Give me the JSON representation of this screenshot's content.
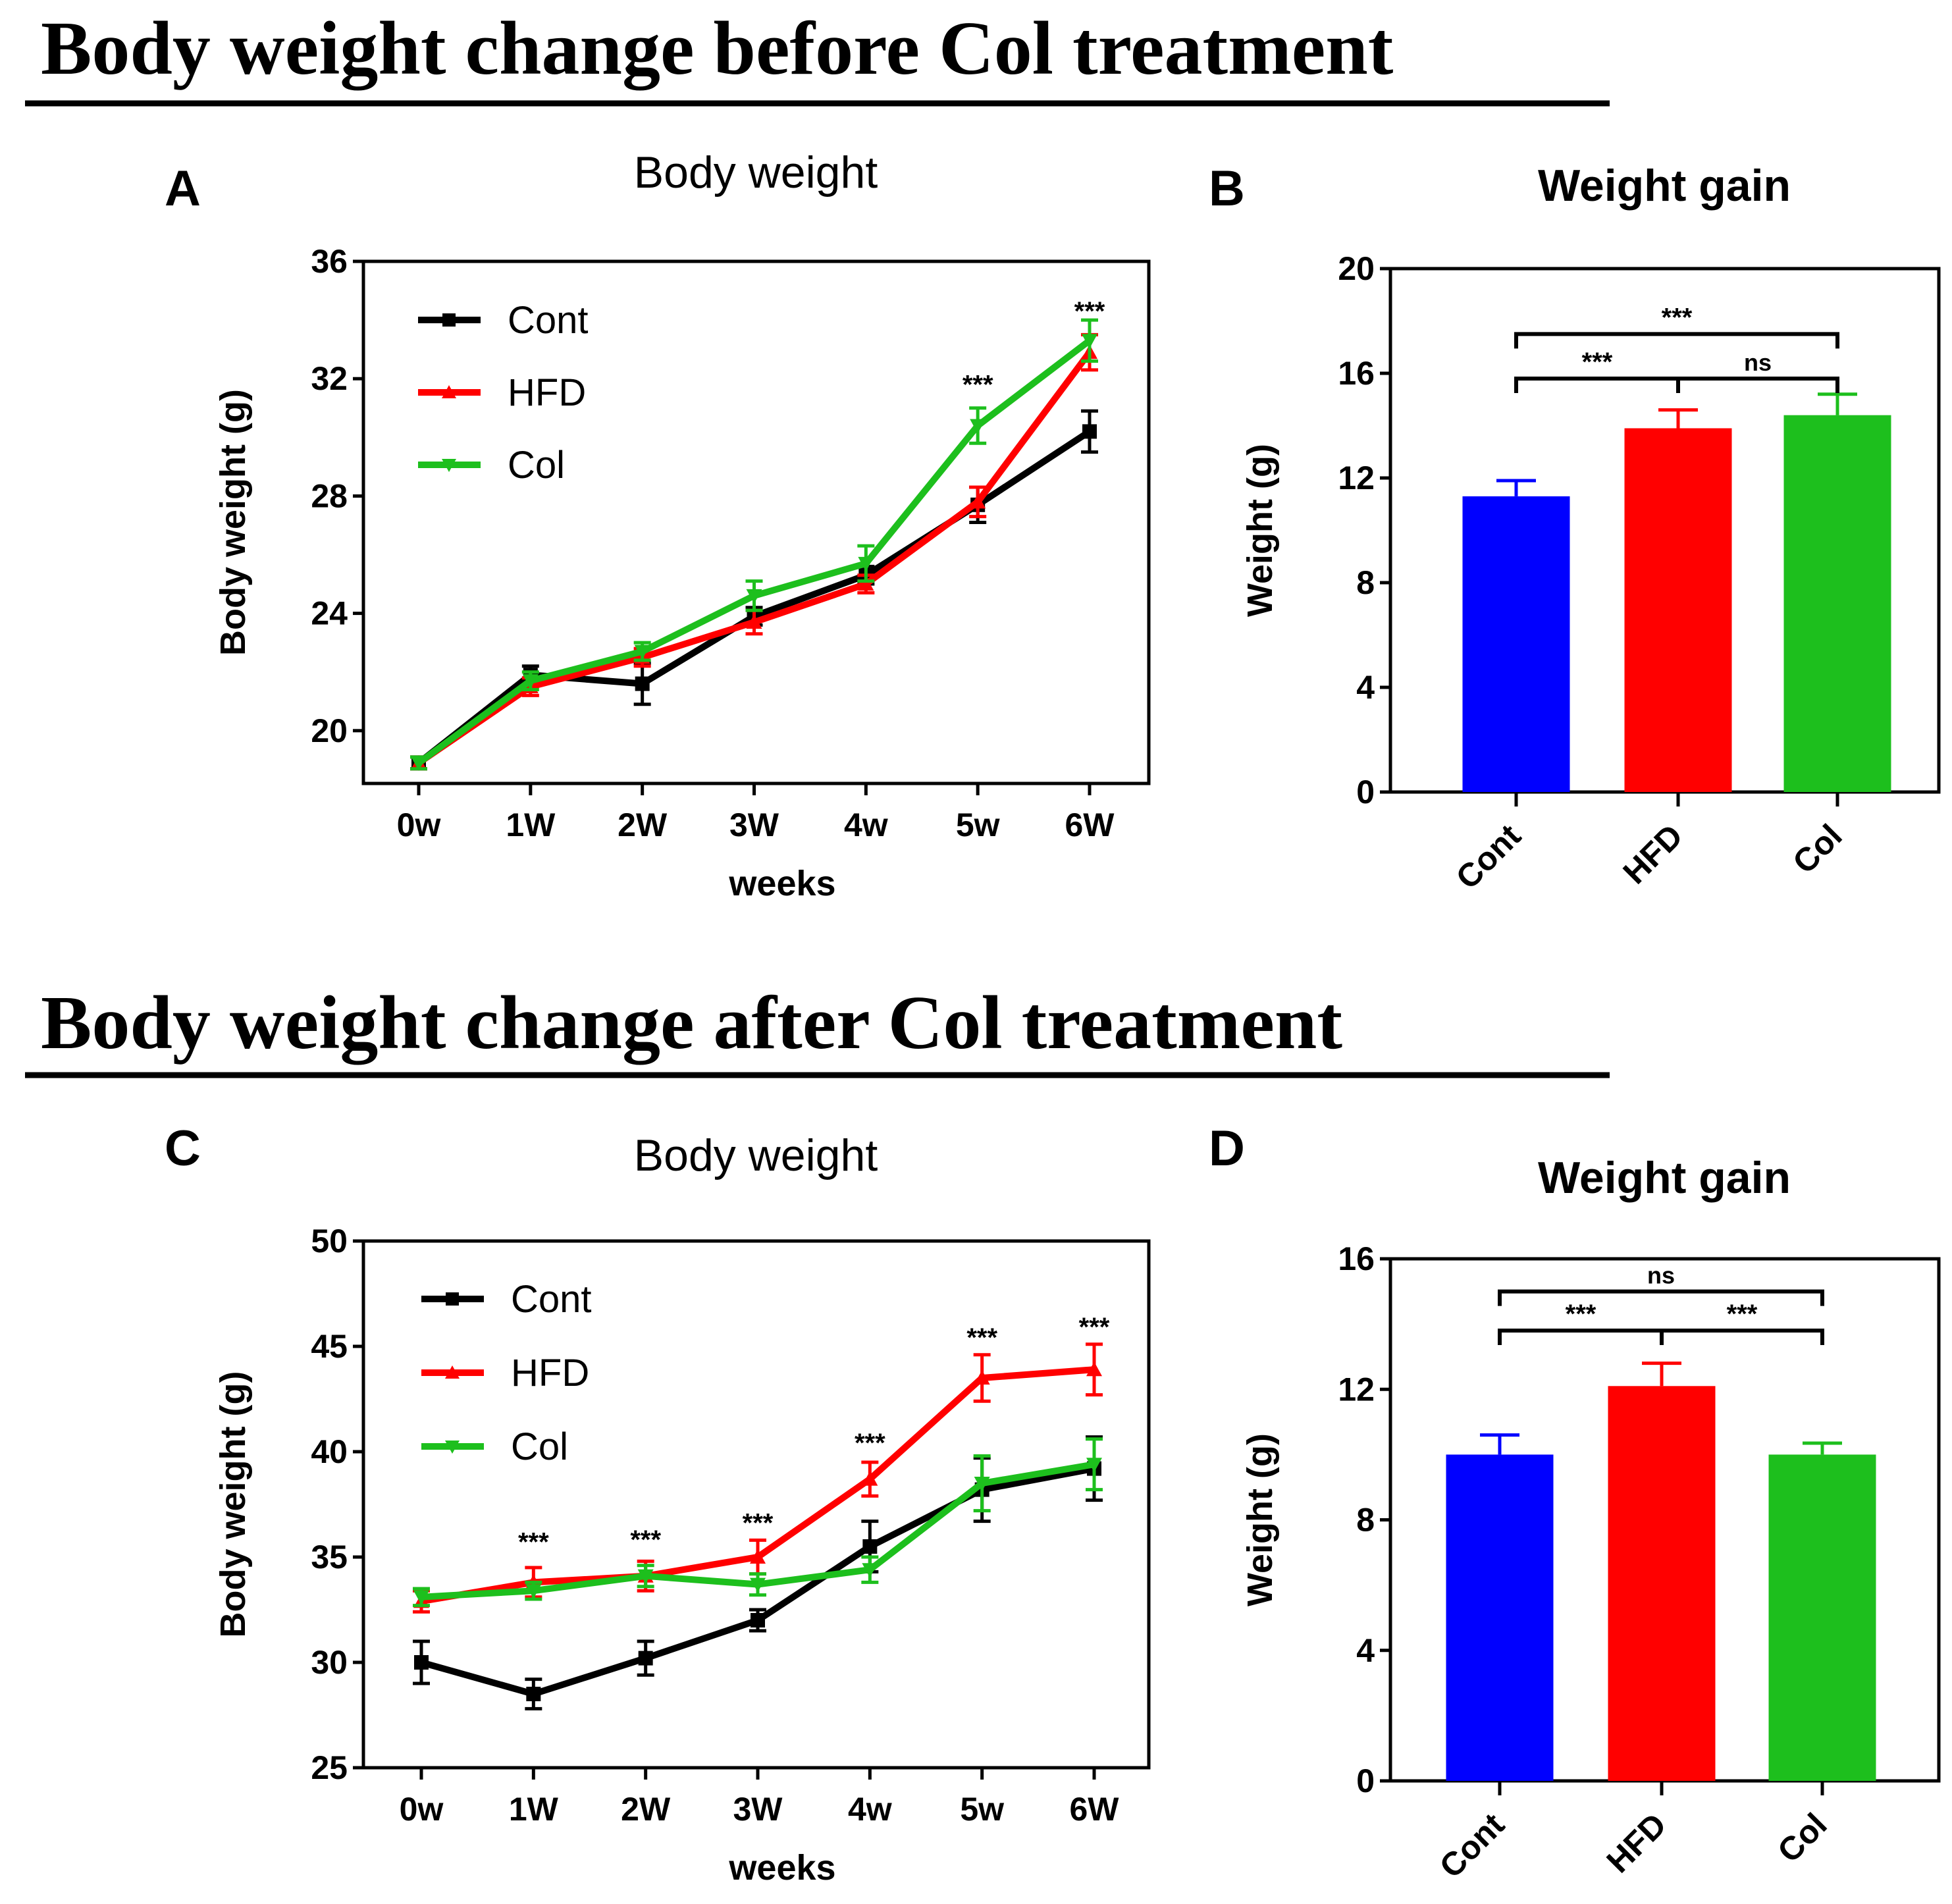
{
  "sections": [
    {
      "title": "Body weight change before Col treatment"
    },
    {
      "title": "Body weight change after Col treatment"
    }
  ],
  "series_colors": {
    "Cont": "#000000",
    "HFD": "#ff0000",
    "Col": "#1dbf1d"
  },
  "bar_colors": [
    "#0000ff",
    "#ff0000",
    "#1dbf1d"
  ],
  "chart_data": [
    {
      "id": "A",
      "panel": "A",
      "type": "line",
      "title": "Body   weight",
      "xlabel": "weeks",
      "ylabel": "Body weight (g)",
      "ylim": [
        18.2,
        36
      ],
      "yticks": [
        20,
        24,
        28,
        32,
        36
      ],
      "categories": [
        "0w",
        "1W",
        "2W",
        "3W",
        "4w",
        "5w",
        "6W"
      ],
      "series": [
        {
          "name": "Cont",
          "values": [
            18.9,
            21.9,
            21.6,
            23.9,
            25.3,
            27.7,
            30.2
          ],
          "errors": [
            0.2,
            0.3,
            0.7,
            0.3,
            0.3,
            0.6,
            0.7
          ]
        },
        {
          "name": "HFD",
          "values": [
            18.9,
            21.5,
            22.5,
            23.7,
            25.0,
            27.8,
            32.9
          ],
          "errors": [
            0.2,
            0.3,
            0.3,
            0.4,
            0.3,
            0.5,
            0.6
          ]
        },
        {
          "name": "Col",
          "values": [
            18.9,
            21.7,
            22.7,
            24.6,
            25.7,
            30.4,
            33.3
          ],
          "errors": [
            0.2,
            0.3,
            0.3,
            0.5,
            0.6,
            0.6,
            0.7
          ]
        }
      ],
      "annotations": [
        {
          "text": "***",
          "category": "5w",
          "y": 31.5
        },
        {
          "text": "***",
          "category": "6W",
          "y": 34.0
        }
      ],
      "legend_position": "top-left"
    },
    {
      "id": "B",
      "panel": "B",
      "type": "bar",
      "title": "Weight gain",
      "xlabel": "",
      "ylabel": "Weight (g)",
      "ylim": [
        0,
        20
      ],
      "yticks": [
        0,
        4,
        8,
        12,
        16,
        20
      ],
      "categories": [
        "Cont",
        "HFD",
        "Col"
      ],
      "values": [
        11.3,
        13.9,
        14.4
      ],
      "errors": [
        0.6,
        0.7,
        0.8
      ],
      "comparisons": [
        {
          "from": 0,
          "to": 1,
          "label": "***",
          "y": 15.8
        },
        {
          "from": 1,
          "to": 2,
          "label": "ns",
          "y": 15.8
        },
        {
          "from": 0,
          "to": 2,
          "label": "***",
          "y": 17.5
        }
      ]
    },
    {
      "id": "C",
      "panel": "C",
      "type": "line",
      "title": "Body   weight",
      "xlabel": "weeks",
      "ylabel": "Body weight (g)",
      "ylim": [
        25,
        50
      ],
      "yticks": [
        25,
        30,
        35,
        40,
        45,
        50
      ],
      "categories": [
        "0w",
        "1W",
        "2W",
        "3W",
        "4w",
        "5w",
        "6W"
      ],
      "series": [
        {
          "name": "Cont",
          "values": [
            30.0,
            28.5,
            30.2,
            32.0,
            35.5,
            38.2,
            39.2
          ],
          "errors": [
            1.0,
            0.7,
            0.8,
            0.5,
            1.2,
            1.5,
            1.5
          ]
        },
        {
          "name": "HFD",
          "values": [
            32.9,
            33.8,
            34.1,
            35.0,
            38.7,
            43.5,
            43.9
          ],
          "errors": [
            0.5,
            0.7,
            0.7,
            0.8,
            0.8,
            1.1,
            1.2
          ]
        },
        {
          "name": "Col",
          "values": [
            33.1,
            33.4,
            34.1,
            33.7,
            34.4,
            38.5,
            39.4
          ],
          "errors": [
            0.4,
            0.4,
            0.5,
            0.5,
            0.6,
            1.3,
            1.2
          ]
        }
      ],
      "annotations": [
        {
          "text": "***",
          "category": "1W",
          "y": 35.3
        },
        {
          "text": "***",
          "category": "2W",
          "y": 35.4
        },
        {
          "text": "***",
          "category": "3W",
          "y": 36.2
        },
        {
          "text": "***",
          "category": "4w",
          "y": 40.0
        },
        {
          "text": "***",
          "category": "5w",
          "y": 45.0
        },
        {
          "text": "***",
          "category": "6W",
          "y": 45.5
        }
      ],
      "legend_position": "top-left"
    },
    {
      "id": "D",
      "panel": "D",
      "type": "bar",
      "title": "Weight gain",
      "xlabel": "",
      "ylabel": "Weight (g)",
      "ylim": [
        0,
        16
      ],
      "yticks": [
        0,
        4,
        8,
        12,
        16
      ],
      "categories": [
        "Cont",
        "HFD",
        "Col"
      ],
      "values": [
        10.0,
        12.1,
        10.0
      ],
      "errors": [
        0.6,
        0.7,
        0.35
      ],
      "comparisons": [
        {
          "from": 0,
          "to": 1,
          "label": "***",
          "y": 13.8
        },
        {
          "from": 1,
          "to": 2,
          "label": "***",
          "y": 13.8
        },
        {
          "from": 0,
          "to": 2,
          "label": "ns",
          "y": 15.0
        }
      ]
    }
  ]
}
